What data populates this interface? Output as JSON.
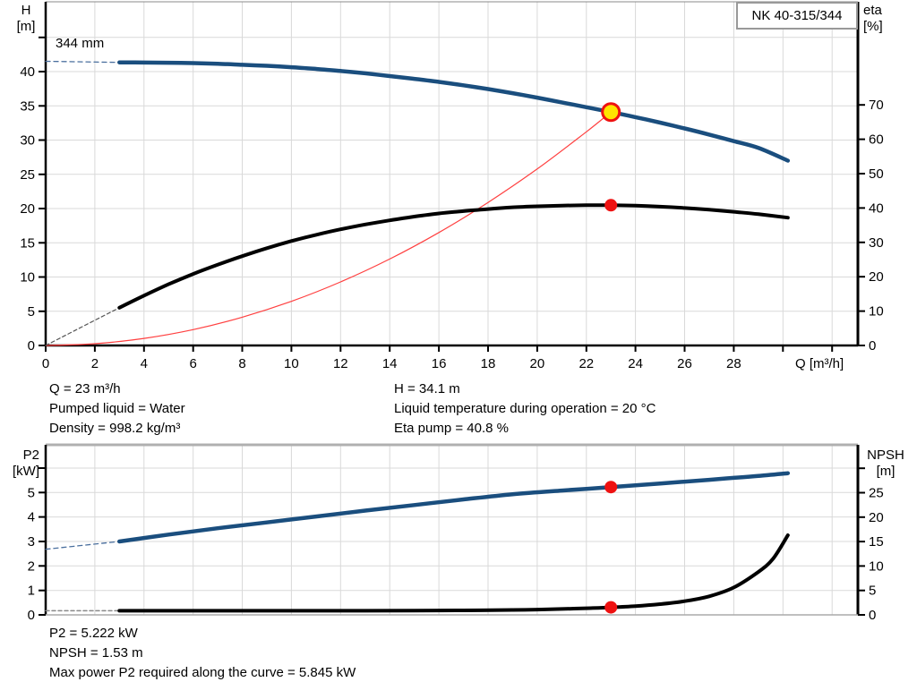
{
  "header": {
    "pump_model": "NK 40-315/344"
  },
  "top_chart": {
    "impeller_label": "344 mm",
    "model_box": "NK 40-315/344",
    "y_left_title": [
      "H",
      "[m]"
    ],
    "y_right_title": [
      "eta",
      "[%]"
    ],
    "x_title": "Q [m³/h]"
  },
  "bottom_chart": {
    "y_left_title": [
      "P2",
      "[kW]"
    ],
    "y_right_title": [
      "NPSH",
      "[m]"
    ]
  },
  "info_top": {
    "left": [
      "Q = 23 m³/h",
      "Pumped liquid = Water",
      "Density = 998.2 kg/m³"
    ],
    "right": [
      "H = 34.1 m",
      "Liquid temperature during operation = 20 °C",
      "Eta pump = 40.8 %"
    ]
  },
  "info_bottom": [
    "P2 = 5.222 kW",
    "NPSH = 1.53 m",
    "Max power P2 required along the curve = 5.845 kW"
  ],
  "colors": {
    "curve_blue": "#1a4e7e",
    "curve_black": "#000000",
    "system_red": "#ff4040",
    "marker_red": "#ee1111",
    "duty_yellow": "#ffe400",
    "grid": "#d9d9d9",
    "axis": "#000000",
    "box_border": "#999999"
  },
  "duty_point": {
    "Q": 23,
    "H": 34.1,
    "eta": 40.8,
    "P2": 5.222,
    "NPSH": 1.53
  },
  "chart_data": [
    {
      "type": "line",
      "id": "qh-eta",
      "title": "NK 40-315/344",
      "x_axis": {
        "label": "Q [m³/h]",
        "range": [
          0,
          33.05
        ],
        "ticks": [
          0,
          2,
          4,
          6,
          8,
          10,
          12,
          14,
          16,
          18,
          20,
          22,
          24,
          26,
          28,
          30,
          32
        ],
        "tick_labels": [
          "0",
          "2",
          "4",
          "6",
          "8",
          "10",
          "12",
          "14",
          "16",
          "18",
          "20",
          "22",
          "24",
          "26",
          "28",
          "",
          ""
        ]
      },
      "y_left": {
        "label": "H [m]",
        "range": [
          0,
          50.2
        ],
        "ticks": [
          0,
          5,
          10,
          15,
          20,
          25,
          30,
          35,
          40,
          45
        ],
        "tick_labels": [
          "0",
          "5",
          "10",
          "15",
          "20",
          "25",
          "30",
          "35",
          "40",
          ""
        ]
      },
      "y_right": {
        "label": "eta [%]",
        "range": [
          0,
          100
        ],
        "ticks": [
          0,
          10,
          20,
          30,
          40,
          50,
          60,
          70
        ],
        "tick_labels": [
          "0",
          "10",
          "20",
          "30",
          "40",
          "50",
          "60",
          "70"
        ]
      },
      "series": [
        {
          "name": "system-curve",
          "axis": "left",
          "color": "#ff4040",
          "width": 1.2,
          "points": [
            [
              0,
              0
            ],
            [
              2,
              0.26
            ],
            [
              4,
              1.03
            ],
            [
              6,
              2.32
            ],
            [
              8,
              4.13
            ],
            [
              10,
              6.45
            ],
            [
              12,
              9.28
            ],
            [
              14,
              12.63
            ],
            [
              16,
              16.5
            ],
            [
              18,
              20.89
            ],
            [
              20,
              25.78
            ],
            [
              22,
              31.2
            ],
            [
              23,
              34.1
            ]
          ]
        },
        {
          "name": "efficiency-curve-extrapolated",
          "axis": "right",
          "color": "#555555",
          "width": 1.2,
          "dash": "4,3",
          "points": [
            [
              0,
              0
            ],
            [
              3,
              11
            ]
          ]
        },
        {
          "name": "efficiency-curve",
          "axis": "right",
          "color": "#000000",
          "width": 4,
          "points": [
            [
              3,
              11
            ],
            [
              4,
              14.5
            ],
            [
              5,
              17.8
            ],
            [
              6,
              20.8
            ],
            [
              7,
              23.5
            ],
            [
              8,
              26
            ],
            [
              9,
              28.3
            ],
            [
              10,
              30.4
            ],
            [
              11,
              32.2
            ],
            [
              12,
              33.8
            ],
            [
              13,
              35.2
            ],
            [
              14,
              36.4
            ],
            [
              15,
              37.5
            ],
            [
              16,
              38.4
            ],
            [
              17,
              39.1
            ],
            [
              18,
              39.7
            ],
            [
              19,
              40.2
            ],
            [
              20,
              40.5
            ],
            [
              21,
              40.7
            ],
            [
              22,
              40.8
            ],
            [
              23,
              40.8
            ],
            [
              24,
              40.7
            ],
            [
              25,
              40.4
            ],
            [
              26,
              40
            ],
            [
              27,
              39.5
            ],
            [
              28,
              38.9
            ],
            [
              29,
              38.2
            ],
            [
              30.2,
              37.2
            ]
          ]
        },
        {
          "name": "head-curve-extrapolated",
          "axis": "left",
          "color": "#4a6f9e",
          "width": 1.3,
          "dash": "5,4",
          "points": [
            [
              0,
              41.5
            ],
            [
              3,
              41.35
            ]
          ]
        },
        {
          "name": "head-curve",
          "axis": "left",
          "color": "#1a4e7e",
          "width": 4.5,
          "points": [
            [
              3,
              41.35
            ],
            [
              4,
              41.33
            ],
            [
              5,
              41.3
            ],
            [
              6,
              41.25
            ],
            [
              7,
              41.15
            ],
            [
              8,
              41
            ],
            [
              9,
              40.85
            ],
            [
              10,
              40.65
            ],
            [
              11,
              40.4
            ],
            [
              12,
              40.1
            ],
            [
              13,
              39.75
            ],
            [
              14,
              39.35
            ],
            [
              15,
              38.95
            ],
            [
              16,
              38.5
            ],
            [
              17,
              38
            ],
            [
              18,
              37.45
            ],
            [
              19,
              36.85
            ],
            [
              20,
              36.2
            ],
            [
              21,
              35.5
            ],
            [
              22,
              34.8
            ],
            [
              23,
              34.1
            ],
            [
              24,
              33.35
            ],
            [
              25,
              32.55
            ],
            [
              26,
              31.7
            ],
            [
              27,
              30.8
            ],
            [
              28,
              29.85
            ],
            [
              29,
              28.85
            ],
            [
              30.2,
              27
            ]
          ]
        }
      ],
      "markers": [
        {
          "name": "duty-point",
          "axis": "left",
          "x": 23,
          "y": 34.1,
          "r": 9.5,
          "fill": "#ffe400",
          "stroke": "#ee1111",
          "stroke_width": 3,
          "interactable": true
        },
        {
          "name": "efficiency-point",
          "axis": "right",
          "x": 23,
          "y": 40.8,
          "r": 7,
          "fill": "#ee1111",
          "interactable": false
        }
      ]
    },
    {
      "type": "line",
      "id": "p2-npsh",
      "title": "",
      "x_axis": {
        "label": "",
        "range": [
          0,
          33.05
        ],
        "ticks": [
          0,
          2,
          4,
          6,
          8,
          10,
          12,
          14,
          16,
          18,
          20,
          22,
          24,
          26,
          28,
          30,
          32
        ],
        "tick_labels": [
          "",
          "",
          "",
          "",
          "",
          "",
          "",
          "",
          "",
          "",
          "",
          "",
          "",
          "",
          "",
          "",
          ""
        ]
      },
      "y_left": {
        "label": "P2 [kW]",
        "range": [
          0,
          6.95
        ],
        "ticks": [
          0,
          1,
          2,
          3,
          4,
          5,
          6
        ],
        "tick_labels": [
          "0",
          "1",
          "2",
          "3",
          "4",
          "5",
          ""
        ]
      },
      "y_right": {
        "label": "NPSH [m]",
        "range": [
          0,
          34.8
        ],
        "ticks": [
          0,
          5,
          10,
          15,
          20,
          25,
          30
        ],
        "tick_labels": [
          "0",
          "5",
          "10",
          "15",
          "20",
          "25",
          ""
        ]
      },
      "series": [
        {
          "name": "p2-curve-extrapolated",
          "axis": "left",
          "color": "#4a6f9e",
          "width": 1.3,
          "dash": "5,4",
          "points": [
            [
              0,
              2.68
            ],
            [
              3,
              3
            ]
          ]
        },
        {
          "name": "p2-curve",
          "axis": "left",
          "color": "#1a4e7e",
          "width": 4.5,
          "points": [
            [
              3,
              3
            ],
            [
              5,
              3.28
            ],
            [
              7,
              3.54
            ],
            [
              9,
              3.78
            ],
            [
              11,
              4.02
            ],
            [
              13,
              4.26
            ],
            [
              15,
              4.49
            ],
            [
              17,
              4.72
            ],
            [
              19,
              4.93
            ],
            [
              21,
              5.08
            ],
            [
              23,
              5.22
            ],
            [
              25,
              5.37
            ],
            [
              27,
              5.52
            ],
            [
              28,
              5.6
            ],
            [
              29,
              5.68
            ],
            [
              30.2,
              5.79
            ]
          ]
        },
        {
          "name": "npsh-curve-extrapolated",
          "axis": "right",
          "color": "#888888",
          "width": 1.5,
          "dash": "4,3",
          "points": [
            [
              0,
              0.85
            ],
            [
              3,
              0.85
            ]
          ]
        },
        {
          "name": "npsh-curve",
          "axis": "right",
          "color": "#000000",
          "width": 4,
          "points": [
            [
              3,
              0.85
            ],
            [
              5,
              0.85
            ],
            [
              7,
              0.85
            ],
            [
              9,
              0.85
            ],
            [
              11,
              0.85
            ],
            [
              13,
              0.85
            ],
            [
              15,
              0.88
            ],
            [
              17,
              0.92
            ],
            [
              19,
              1
            ],
            [
              20,
              1.08
            ],
            [
              21,
              1.2
            ],
            [
              22,
              1.35
            ],
            [
              23,
              1.53
            ],
            [
              24,
              1.8
            ],
            [
              25,
              2.2
            ],
            [
              26,
              2.8
            ],
            [
              27,
              3.8
            ],
            [
              28,
              5.6
            ],
            [
              29,
              8.8
            ],
            [
              29.6,
              11.5
            ],
            [
              30.2,
              16.3
            ]
          ]
        }
      ],
      "markers": [
        {
          "name": "p2-point",
          "axis": "left",
          "x": 23,
          "y": 5.222,
          "r": 7,
          "fill": "#ee1111",
          "interactable": false
        },
        {
          "name": "npsh-point",
          "axis": "right",
          "x": 23,
          "y": 1.53,
          "r": 7,
          "fill": "#ee1111",
          "interactable": false
        }
      ]
    }
  ]
}
